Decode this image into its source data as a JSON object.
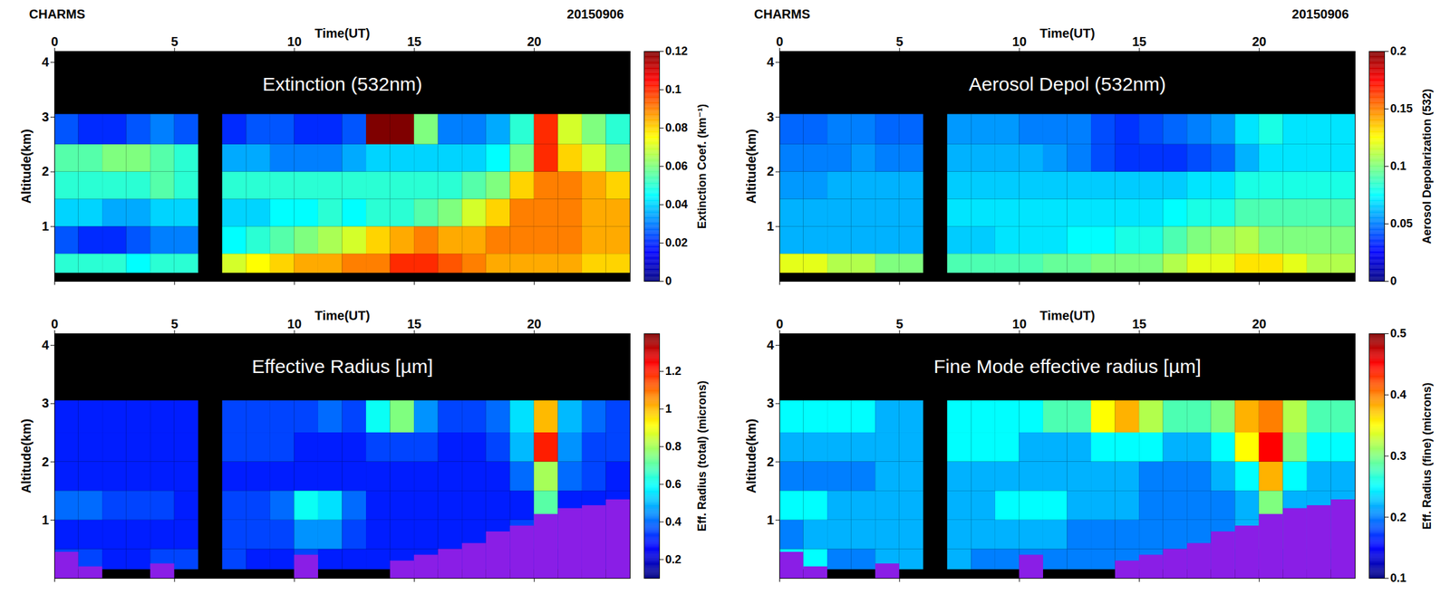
{
  "chart_data": [
    {
      "type": "heatmap",
      "header": [
        "CHARMS",
        "20150906"
      ],
      "title": "Extinction (532nm)",
      "x_label": "Time(UT)",
      "y_label": "Altitude(km)",
      "xlim": [
        0,
        24
      ],
      "xticks": [
        0,
        5,
        10,
        15,
        20
      ],
      "ylim": [
        0,
        4.2
      ],
      "yticks": [
        1,
        2,
        3,
        4
      ],
      "x": [
        0,
        1,
        2,
        3,
        4,
        5,
        6,
        7,
        8,
        9,
        10,
        11,
        12,
        13,
        14,
        15,
        16,
        17,
        18,
        19,
        20,
        21,
        22,
        23,
        24
      ],
      "y": [
        0.15,
        0.5,
        1.0,
        1.5,
        2.0,
        2.5,
        3.05
      ],
      "cells": [
        [
          0.05,
          0.05,
          0.05,
          0.045,
          0.05,
          0.05,
          null,
          0.07,
          0.075,
          0.08,
          0.085,
          0.085,
          0.09,
          0.09,
          0.1,
          0.1,
          0.095,
          0.09,
          0.085,
          0.085,
          0.085,
          0.085,
          0.08,
          0.08
        ],
        [
          0.025,
          0.02,
          0.02,
          0.025,
          0.03,
          0.03,
          null,
          0.045,
          0.05,
          0.055,
          0.06,
          0.065,
          0.07,
          0.08,
          0.085,
          0.09,
          0.085,
          0.085,
          0.09,
          0.09,
          0.09,
          0.09,
          0.085,
          0.085
        ],
        [
          0.04,
          0.04,
          0.035,
          0.035,
          0.04,
          0.04,
          null,
          0.04,
          0.04,
          0.045,
          0.045,
          0.05,
          0.045,
          0.05,
          0.05,
          0.055,
          0.06,
          0.07,
          0.08,
          0.09,
          0.09,
          0.09,
          0.085,
          0.085
        ],
        [
          0.05,
          0.05,
          0.05,
          0.05,
          0.055,
          0.05,
          null,
          0.05,
          0.05,
          0.05,
          0.05,
          0.05,
          0.05,
          0.05,
          0.05,
          0.05,
          0.05,
          0.055,
          0.06,
          0.08,
          0.09,
          0.09,
          0.085,
          0.08
        ],
        [
          0.055,
          0.055,
          0.06,
          0.06,
          0.055,
          0.05,
          null,
          0.035,
          0.035,
          0.03,
          0.03,
          0.03,
          0.035,
          0.04,
          0.04,
          0.04,
          0.04,
          0.04,
          0.045,
          0.06,
          0.1,
          0.08,
          0.07,
          0.06
        ],
        [
          0.025,
          0.02,
          0.02,
          0.025,
          0.03,
          0.025,
          null,
          0.02,
          0.025,
          0.025,
          0.02,
          0.02,
          0.025,
          0.12,
          0.12,
          0.06,
          0.03,
          0.03,
          0.035,
          0.05,
          0.1,
          0.07,
          0.06,
          0.05
        ]
      ],
      "colorbar": {
        "range": [
          0,
          0.12
        ],
        "ticks": [
          0,
          0.02,
          0.04,
          0.06,
          0.08,
          0.1,
          0.12
        ],
        "label": "Extinction Coef. (km⁻¹)"
      }
    },
    {
      "type": "heatmap",
      "header": [
        "CHARMS",
        "20150906"
      ],
      "title": "Aerosol Depol (532nm)",
      "x_label": "Time(UT)",
      "y_label": "Altitude(km)",
      "xlim": [
        0,
        24
      ],
      "xticks": [
        0,
        5,
        10,
        15,
        20
      ],
      "ylim": [
        0,
        4.2
      ],
      "yticks": [
        1,
        2,
        3,
        4
      ],
      "x": [
        0,
        1,
        2,
        3,
        4,
        5,
        6,
        7,
        8,
        9,
        10,
        11,
        12,
        13,
        14,
        15,
        16,
        17,
        18,
        19,
        20,
        21,
        22,
        23,
        24
      ],
      "y": [
        0.15,
        0.5,
        1.0,
        1.5,
        2.0,
        2.5,
        3.05
      ],
      "cells": [
        [
          0.12,
          0.12,
          0.11,
          0.11,
          0.1,
          0.1,
          null,
          0.09,
          0.09,
          0.09,
          0.09,
          0.095,
          0.095,
          0.1,
          0.1,
          0.1,
          0.11,
          0.12,
          0.12,
          0.13,
          0.13,
          0.12,
          0.11,
          0.11
        ],
        [
          0.06,
          0.06,
          0.06,
          0.06,
          0.06,
          0.06,
          null,
          0.065,
          0.065,
          0.07,
          0.07,
          0.07,
          0.075,
          0.075,
          0.08,
          0.08,
          0.09,
          0.1,
          0.105,
          0.11,
          0.1,
          0.1,
          0.1,
          0.1
        ],
        [
          0.06,
          0.06,
          0.06,
          0.06,
          0.06,
          0.06,
          null,
          0.07,
          0.07,
          0.07,
          0.07,
          0.07,
          0.07,
          0.07,
          0.07,
          0.07,
          0.075,
          0.08,
          0.08,
          0.09,
          0.09,
          0.09,
          0.09,
          0.09
        ],
        [
          0.055,
          0.055,
          0.06,
          0.06,
          0.06,
          0.06,
          null,
          0.065,
          0.065,
          0.065,
          0.065,
          0.065,
          0.065,
          0.065,
          0.065,
          0.065,
          0.065,
          0.07,
          0.07,
          0.08,
          0.08,
          0.08,
          0.08,
          0.08
        ],
        [
          0.05,
          0.05,
          0.05,
          0.055,
          0.05,
          0.05,
          null,
          0.06,
          0.06,
          0.06,
          0.06,
          0.055,
          0.05,
          0.04,
          0.035,
          0.035,
          0.035,
          0.04,
          0.045,
          0.06,
          0.07,
          0.07,
          0.07,
          0.07
        ],
        [
          0.045,
          0.045,
          0.05,
          0.05,
          0.045,
          0.045,
          null,
          0.055,
          0.055,
          0.055,
          0.05,
          0.05,
          0.05,
          0.04,
          0.035,
          0.04,
          0.045,
          0.05,
          0.055,
          0.07,
          0.08,
          0.07,
          0.07,
          0.07
        ]
      ],
      "colorbar": {
        "range": [
          0,
          0.2
        ],
        "ticks": [
          0,
          0.05,
          0.1,
          0.15,
          0.2
        ],
        "label": "Aerosol Depolarization (532)"
      }
    },
    {
      "type": "heatmap",
      "title": "Effective Radius [µm]",
      "x_label": "Time(UT)",
      "y_label": "Altitude(km)",
      "xlim": [
        0,
        24
      ],
      "xticks": [
        0,
        5,
        10,
        15,
        20
      ],
      "ylim": [
        0,
        4.2
      ],
      "yticks": [
        1,
        2,
        3,
        4
      ],
      "x": [
        0,
        1,
        2,
        3,
        4,
        5,
        6,
        7,
        8,
        9,
        10,
        11,
        12,
        13,
        14,
        15,
        16,
        17,
        18,
        19,
        20,
        21,
        22,
        23,
        24
      ],
      "y": [
        0.15,
        0.5,
        1.0,
        1.5,
        2.0,
        2.5,
        3.05
      ],
      "cells": [
        [
          0.35,
          0.35,
          0.3,
          0.3,
          0.35,
          0.35,
          null,
          0.35,
          0.3,
          0.3,
          0.35,
          0.3,
          0.3,
          0.3,
          0.3,
          0.3,
          0.3,
          0.3,
          0.3,
          0.3,
          0.3,
          0.3,
          0.3,
          0.3
        ],
        [
          0.3,
          0.3,
          0.3,
          0.3,
          0.3,
          0.3,
          null,
          0.35,
          0.35,
          0.35,
          0.45,
          0.45,
          0.35,
          0.3,
          0.3,
          0.3,
          0.3,
          0.3,
          0.3,
          0.35,
          0.6,
          0.35,
          0.3,
          0.3
        ],
        [
          0.4,
          0.4,
          0.35,
          0.35,
          0.35,
          0.3,
          null,
          0.35,
          0.35,
          0.4,
          0.6,
          0.55,
          0.4,
          0.3,
          0.3,
          0.3,
          0.3,
          0.3,
          0.3,
          0.3,
          0.7,
          0.3,
          0.3,
          0.3
        ],
        [
          0.3,
          0.3,
          0.3,
          0.3,
          0.3,
          0.3,
          null,
          0.3,
          0.3,
          0.3,
          0.3,
          0.3,
          0.3,
          0.3,
          0.3,
          0.3,
          0.3,
          0.3,
          0.3,
          0.4,
          0.8,
          0.4,
          0.35,
          0.3
        ],
        [
          0.3,
          0.3,
          0.3,
          0.3,
          0.3,
          0.3,
          null,
          0.35,
          0.35,
          0.35,
          0.3,
          0.3,
          0.3,
          0.35,
          0.35,
          0.35,
          0.3,
          0.3,
          0.35,
          0.5,
          1.2,
          0.45,
          0.35,
          0.35
        ],
        [
          0.3,
          0.3,
          0.3,
          0.3,
          0.3,
          0.3,
          null,
          0.35,
          0.35,
          0.35,
          0.35,
          0.4,
          0.35,
          0.6,
          0.75,
          0.45,
          0.35,
          0.35,
          0.4,
          0.55,
          1.0,
          0.5,
          0.4,
          0.35
        ]
      ],
      "overlay": {
        "color": "#8a1ee6",
        "top": [
          0.45,
          0.2,
          null,
          null,
          0.25,
          null,
          null,
          null,
          null,
          null,
          0.4,
          null,
          null,
          null,
          0.3,
          0.4,
          0.5,
          0.6,
          0.8,
          0.9,
          1.1,
          1.2,
          1.25,
          1.35
        ]
      },
      "colorbar": {
        "range": [
          0.1,
          1.4
        ],
        "ticks": [
          0.2,
          0.4,
          0.6,
          0.8,
          1,
          1.2
        ],
        "label": "Eff. Radius (total) (microns)"
      }
    },
    {
      "type": "heatmap",
      "title": "Fine Mode effective radius [µm]",
      "x_label": "Time(UT)",
      "y_label": "Altitude(km)",
      "xlim": [
        0,
        24
      ],
      "xticks": [
        0,
        5,
        10,
        15,
        20
      ],
      "ylim": [
        0,
        4.2
      ],
      "yticks": [
        1,
        2,
        3,
        4
      ],
      "x": [
        0,
        1,
        2,
        3,
        4,
        5,
        6,
        7,
        8,
        9,
        10,
        11,
        12,
        13,
        14,
        15,
        16,
        17,
        18,
        19,
        20,
        21,
        22,
        23,
        24
      ],
      "y": [
        0.15,
        0.5,
        1.0,
        1.5,
        2.0,
        2.5,
        3.05
      ],
      "cells": [
        [
          0.25,
          0.25,
          0.2,
          0.2,
          0.22,
          0.22,
          null,
          0.22,
          0.2,
          0.2,
          0.2,
          0.2,
          0.2,
          0.2,
          0.2,
          0.2,
          0.2,
          0.2,
          0.2,
          0.2,
          0.2,
          0.2,
          0.2,
          0.2
        ],
        [
          0.2,
          0.22,
          0.22,
          0.22,
          0.22,
          0.22,
          null,
          0.22,
          0.22,
          0.22,
          0.22,
          0.22,
          0.2,
          0.2,
          0.2,
          0.2,
          0.2,
          0.2,
          0.2,
          0.22,
          0.35,
          0.22,
          0.22,
          0.22
        ],
        [
          0.25,
          0.25,
          0.22,
          0.22,
          0.22,
          0.22,
          null,
          0.22,
          0.22,
          0.25,
          0.25,
          0.25,
          0.22,
          0.22,
          0.22,
          0.2,
          0.2,
          0.2,
          0.2,
          0.22,
          0.3,
          0.22,
          0.22,
          0.22
        ],
        [
          0.2,
          0.2,
          0.2,
          0.2,
          0.22,
          0.22,
          null,
          0.22,
          0.22,
          0.22,
          0.22,
          0.22,
          0.22,
          0.22,
          0.22,
          0.2,
          0.2,
          0.2,
          0.22,
          0.25,
          0.38,
          0.25,
          0.22,
          0.22
        ],
        [
          0.22,
          0.22,
          0.22,
          0.22,
          0.22,
          0.22,
          null,
          0.25,
          0.25,
          0.25,
          0.22,
          0.22,
          0.22,
          0.25,
          0.25,
          0.25,
          0.22,
          0.22,
          0.25,
          0.35,
          0.45,
          0.3,
          0.25,
          0.25
        ],
        [
          0.25,
          0.25,
          0.25,
          0.25,
          0.22,
          0.22,
          null,
          0.25,
          0.25,
          0.25,
          0.25,
          0.28,
          0.28,
          0.35,
          0.38,
          0.32,
          0.28,
          0.28,
          0.3,
          0.38,
          0.4,
          0.32,
          0.28,
          0.28
        ]
      ],
      "overlay": {
        "color": "#8a1ee6",
        "top": [
          0.45,
          0.2,
          null,
          null,
          0.25,
          null,
          null,
          null,
          null,
          null,
          0.4,
          null,
          null,
          null,
          0.3,
          0.4,
          0.5,
          0.6,
          0.8,
          0.9,
          1.1,
          1.2,
          1.25,
          1.35
        ]
      },
      "colorbar": {
        "range": [
          0.1,
          0.5
        ],
        "ticks": [
          0.1,
          0.2,
          0.3,
          0.4,
          0.5
        ],
        "label": "Eff. Radius (fine) (microns)"
      }
    }
  ]
}
